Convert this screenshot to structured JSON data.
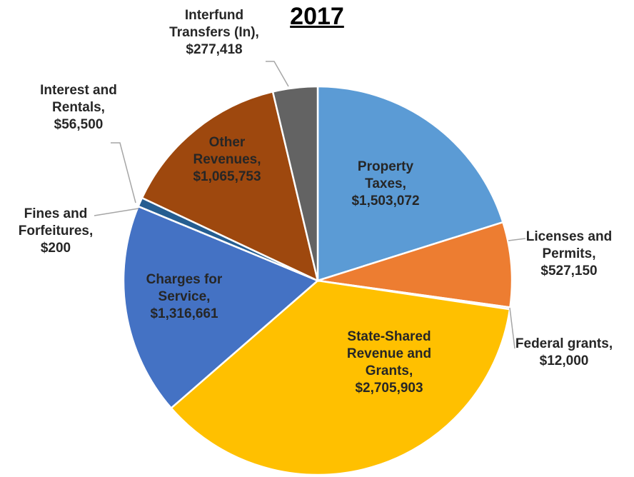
{
  "chart_data": {
    "type": "pie",
    "title": "2017",
    "categories": [
      "Property Taxes,",
      "Licenses and Permits,",
      "Federal grants,",
      "State-Shared Revenue and Grants,",
      "Charges for Service,",
      "Fines and Forfeitures,",
      "Interest and Rentals,",
      "Other Revenues,",
      "Interfund Transfers (In),"
    ],
    "values": [
      1503072,
      527150,
      12000,
      2705903,
      1316661,
      200,
      56500,
      1065753,
      277418
    ],
    "value_labels": [
      "$1,503,072",
      "$527,150",
      "$12,000",
      "$2,705,903",
      "$1,316,661",
      "$200",
      "$56,500",
      "$1,065,753",
      "$277,418"
    ],
    "colors": [
      "#5b9bd5",
      "#ed7d31",
      "#a5a5a5",
      "#ffc000",
      "#4472c4",
      "#70ad47",
      "#255e91",
      "#9e480e",
      "#636363"
    ]
  }
}
